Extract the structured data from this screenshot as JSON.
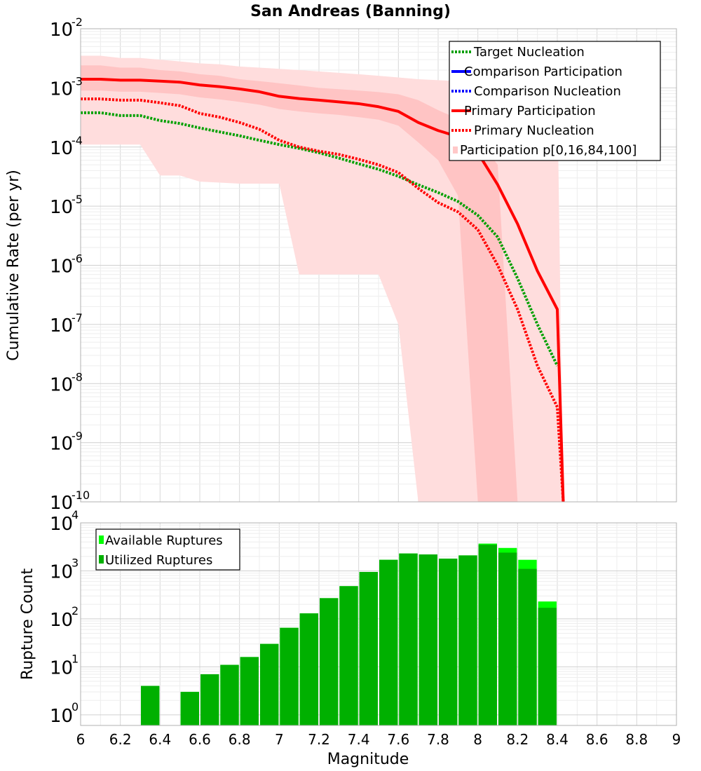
{
  "chart_data": [
    {
      "type": "line",
      "title": "San Andreas (Banning)",
      "ylabel": "Cumulative Rate (per yr)",
      "xlabel": "",
      "xlim": [
        6,
        9
      ],
      "ylim": [
        1e-10,
        0.01
      ],
      "yscale": "log",
      "ytick_labels": [
        {
          "base": "10",
          "exp": "-2"
        },
        {
          "base": "10",
          "exp": "-3"
        },
        {
          "base": "10",
          "exp": "-4"
        },
        {
          "base": "10",
          "exp": "-5"
        },
        {
          "base": "10",
          "exp": "-6"
        },
        {
          "base": "10",
          "exp": "-7"
        },
        {
          "base": "10",
          "exp": "-8"
        },
        {
          "base": "10",
          "exp": "-9"
        },
        {
          "base": "10",
          "exp": "-10"
        }
      ],
      "legend": [
        {
          "label": "Target Nucleation",
          "color": "#00a000",
          "style": "dotted"
        },
        {
          "label": "Comparison Participation",
          "color": "#0000ff",
          "style": "solid"
        },
        {
          "label": "Comparison Nucleation",
          "color": "#0000ff",
          "style": "dotted"
        },
        {
          "label": "Primary Participation",
          "color": "#ff0000",
          "style": "solid"
        },
        {
          "label": "Primary Nucleation",
          "color": "#ff0000",
          "style": "dotted"
        },
        {
          "label": "Participation p[0,16,84,100]",
          "color": "#ffc8c8",
          "style": "band"
        }
      ],
      "series": [
        {
          "name": "Target Nucleation",
          "color": "#00a000",
          "style": "dotted",
          "x": [
            6.0,
            6.1,
            6.2,
            6.3,
            6.4,
            6.5,
            6.6,
            6.7,
            6.8,
            6.9,
            7.0,
            7.1,
            7.2,
            7.3,
            7.4,
            7.5,
            7.6,
            7.7,
            7.8,
            7.9,
            8.0,
            8.1,
            8.2,
            8.3,
            8.4
          ],
          "y": [
            0.00038,
            0.00038,
            0.00034,
            0.00034,
            0.00028,
            0.00025,
            0.00021,
            0.00018,
            0.000155,
            0.00013,
            0.00011,
            9.5e-05,
            8e-05,
            6.5e-05,
            5.2e-05,
            4.2e-05,
            3.2e-05,
            2.3e-05,
            1.7e-05,
            1.2e-05,
            7e-06,
            3e-06,
            6e-07,
            1e-07,
            2e-08
          ]
        },
        {
          "name": "Primary Participation",
          "color": "#ff0000",
          "style": "solid",
          "x": [
            6.0,
            6.1,
            6.2,
            6.3,
            6.4,
            6.5,
            6.6,
            6.7,
            6.8,
            6.9,
            7.0,
            7.1,
            7.2,
            7.3,
            7.4,
            7.5,
            7.6,
            7.7,
            7.8,
            7.9,
            8.0,
            8.1,
            8.2,
            8.3,
            8.4,
            8.43
          ],
          "y": [
            0.0014,
            0.0014,
            0.00135,
            0.00135,
            0.0013,
            0.00125,
            0.00112,
            0.00105,
            0.00096,
            0.00086,
            0.00072,
            0.00066,
            0.00062,
            0.00058,
            0.00054,
            0.00048,
            0.0004,
            0.00026,
            0.00019,
            0.00015,
            8e-05,
            2.3e-05,
            5e-06,
            8e-07,
            1.8e-07,
            1e-10
          ]
        },
        {
          "name": "Primary Nucleation",
          "color": "#ff0000",
          "style": "dotted",
          "x": [
            6.0,
            6.1,
            6.2,
            6.3,
            6.4,
            6.5,
            6.6,
            6.7,
            6.8,
            6.9,
            7.0,
            7.1,
            7.2,
            7.3,
            7.4,
            7.5,
            7.6,
            7.7,
            7.8,
            7.9,
            8.0,
            8.1,
            8.2,
            8.3,
            8.4,
            8.43
          ],
          "y": [
            0.00065,
            0.00065,
            0.00062,
            0.00062,
            0.00056,
            0.0005,
            0.00037,
            0.00032,
            0.00026,
            0.0002,
            0.00013,
            0.0001,
            8.5e-05,
            7.5e-05,
            6.2e-05,
            5e-05,
            3.7e-05,
            2e-05,
            1.15e-05,
            8e-06,
            4e-06,
            1e-06,
            1.8e-07,
            2e-08,
            4e-09,
            1e-10
          ]
        }
      ],
      "bands": [
        {
          "name": "p0-p100",
          "upper": {
            "x": [
              6.0,
              6.1,
              6.2,
              6.3,
              6.4,
              6.5,
              6.6,
              6.7,
              6.8,
              6.9,
              7.0,
              7.1,
              7.2,
              7.3,
              7.4,
              7.5,
              7.6,
              7.7,
              7.8,
              7.9,
              8.0,
              8.1,
              8.2,
              8.3,
              8.4,
              8.43
            ],
            "y": [
              0.0035,
              0.0035,
              0.0032,
              0.0032,
              0.003,
              0.0028,
              0.0026,
              0.0025,
              0.0023,
              0.0022,
              0.0021,
              0.002,
              0.0019,
              0.0018,
              0.0017,
              0.0016,
              0.0015,
              0.0014,
              0.00135,
              0.0013,
              0.00125,
              0.0012,
              0.00115,
              0.0011,
              0.001,
              1e-10
            ]
          },
          "lower": {
            "x": [
              6.0,
              6.1,
              6.2,
              6.3,
              6.4,
              6.5,
              6.6,
              6.7,
              6.8,
              6.9,
              7.0,
              7.1,
              7.2,
              7.3,
              7.4,
              7.5,
              7.6,
              7.7,
              7.8,
              7.9,
              8.0,
              8.1,
              8.2,
              8.3,
              8.4,
              8.43
            ],
            "y": [
              0.00011,
              0.00011,
              0.00011,
              0.00011,
              3.3e-05,
              3.3e-05,
              2.6e-05,
              2.5e-05,
              2.4e-05,
              2.4e-05,
              2.4e-05,
              7e-07,
              7e-07,
              7e-07,
              7e-07,
              7e-07,
              1e-07,
              1e-10,
              1e-10,
              1e-10,
              1e-10,
              1e-10,
              1e-10,
              1e-10,
              1e-10,
              1e-10
            ]
          }
        },
        {
          "name": "p16-p84",
          "upper": {
            "x": [
              6.0,
              6.1,
              6.2,
              6.3,
              6.4,
              6.5,
              6.6,
              6.7,
              6.8,
              6.9,
              7.0,
              7.1,
              7.2,
              7.3,
              7.4,
              7.5,
              7.6,
              7.7,
              7.8,
              7.9,
              8.0,
              8.1,
              8.2,
              8.3
            ],
            "y": [
              0.0024,
              0.0024,
              0.0022,
              0.0022,
              0.002,
              0.0019,
              0.0017,
              0.0016,
              0.0014,
              0.0013,
              0.0012,
              0.0011,
              0.001,
              0.00095,
              0.0009,
              0.00085,
              0.00078,
              0.00062,
              0.00042,
              0.0003,
              0.00014,
              5e-05,
              1e-10,
              1e-10
            ]
          },
          "lower": {
            "x": [
              6.0,
              6.1,
              6.2,
              6.3,
              6.4,
              6.5,
              6.6,
              6.7,
              6.8,
              6.9,
              7.0,
              7.1,
              7.2,
              7.3,
              7.4,
              7.5,
              7.6,
              7.7,
              7.8,
              7.9,
              8.0,
              8.1,
              8.2,
              8.3
            ],
            "y": [
              0.0009,
              0.0009,
              0.00086,
              0.00086,
              0.00082,
              0.00078,
              0.00069,
              0.00064,
              0.00058,
              0.00052,
              0.00044,
              0.0004,
              0.00037,
              0.00035,
              0.00032,
              0.00029,
              0.00023,
              0.00012,
              6e-05,
              1.5e-05,
              1e-10,
              1e-10,
              1e-10,
              1e-10
            ]
          }
        }
      ]
    },
    {
      "type": "bar",
      "ylabel": "Rupture Count",
      "xlabel": "Magnitude",
      "xlim": [
        6,
        9
      ],
      "ylim": [
        0.6,
        10000
      ],
      "yscale": "log",
      "xtick_labels": [
        "6",
        "6.2",
        "6.4",
        "6.6",
        "6.8",
        "7",
        "7.2",
        "7.4",
        "7.6",
        "7.8",
        "8",
        "8.2",
        "8.4",
        "8.6",
        "8.8",
        "9"
      ],
      "ytick_labels": [
        {
          "base": "10",
          "exp": "4"
        },
        {
          "base": "10",
          "exp": "3"
        },
        {
          "base": "10",
          "exp": "2"
        },
        {
          "base": "10",
          "exp": "1"
        },
        {
          "base": "10",
          "exp": "0"
        }
      ],
      "legend": [
        {
          "label": "Available Ruptures",
          "color": "#00ff00"
        },
        {
          "label": "Utilized Ruptures",
          "color": "#00b000"
        }
      ],
      "bin_centers": [
        6.35,
        6.55,
        6.65,
        6.75,
        6.85,
        6.95,
        7.05,
        7.15,
        7.25,
        7.35,
        7.45,
        7.55,
        7.65,
        7.75,
        7.85,
        7.95,
        8.05,
        8.15,
        8.25,
        8.35
      ],
      "series": [
        {
          "name": "Available Ruptures",
          "color": "#00ff00",
          "values": [
            4,
            3,
            7,
            11,
            16,
            30,
            65,
            130,
            270,
            480,
            950,
            1700,
            2300,
            2200,
            1800,
            2100,
            3700,
            3000,
            1700,
            230
          ]
        },
        {
          "name": "Utilized Ruptures",
          "color": "#00b000",
          "values": [
            4,
            3,
            7,
            11,
            16,
            30,
            65,
            130,
            270,
            480,
            950,
            1700,
            2300,
            2200,
            1800,
            2100,
            3500,
            2400,
            1100,
            170
          ]
        }
      ]
    }
  ]
}
